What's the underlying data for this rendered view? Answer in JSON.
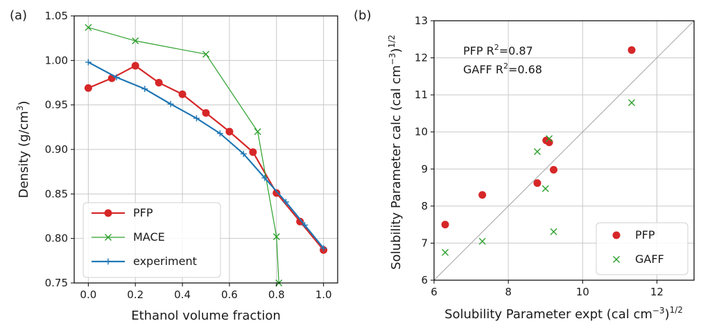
{
  "colors": {
    "PFP": "#d62728",
    "MACE": "#2ca02c",
    "experiment": "#1f77b4",
    "GAFF": "#2ca02c",
    "diag": "#b0b0b0"
  },
  "chart_data": [
    {
      "panel_label": "(a)",
      "type": "line",
      "xlabel": "Ethanol volume fraction",
      "ylabel_main": "Density (g/cm",
      "ylabel_sup": "3",
      "ylabel_end": ")",
      "xlim": [
        -0.06,
        1.06
      ],
      "ylim": [
        0.75,
        1.05
      ],
      "xticks": [
        0.0,
        0.2,
        0.4,
        0.6,
        0.8,
        1.0
      ],
      "xtick_labels": [
        "0.0",
        "0.2",
        "0.4",
        "0.6",
        "0.8",
        "1.0"
      ],
      "yticks": [
        0.75,
        0.8,
        0.85,
        0.9,
        0.95,
        1.0,
        1.05
      ],
      "ytick_labels": [
        "0.75",
        "0.80",
        "0.85",
        "0.90",
        "0.95",
        "1.00",
        "1.05"
      ],
      "grid": true,
      "legend_position": "lower-left",
      "series": [
        {
          "name": "PFP",
          "marker": "circle",
          "x": [
            0.0,
            0.1,
            0.2,
            0.3,
            0.4,
            0.5,
            0.6,
            0.7,
            0.8,
            0.9,
            1.0
          ],
          "y": [
            0.969,
            0.98,
            0.994,
            0.975,
            0.962,
            0.941,
            0.92,
            0.897,
            0.851,
            0.819,
            0.787
          ]
        },
        {
          "name": "MACE",
          "marker": "x",
          "x": [
            0.0,
            0.2,
            0.5,
            0.72,
            0.8,
            0.81
          ],
          "y": [
            1.037,
            1.022,
            1.007,
            0.92,
            0.802,
            0.75
          ]
        },
        {
          "name": "experiment",
          "marker": "plus",
          "x": [
            0.0,
            0.12,
            0.24,
            0.35,
            0.46,
            0.56,
            0.66,
            0.75,
            0.84,
            0.92,
            1.0
          ],
          "y": [
            0.998,
            0.981,
            0.968,
            0.951,
            0.935,
            0.918,
            0.895,
            0.868,
            0.841,
            0.815,
            0.789
          ]
        }
      ]
    },
    {
      "panel_label": "(b)",
      "type": "scatter",
      "xlabel_main": "Solubility Parameter expt (cal cm",
      "xlabel_sup": "−3",
      "xlabel_end": ")",
      "xlabel_sup2": "1/2",
      "ylabel_main": "Solubility Parameter calc (cal cm",
      "ylabel_sup": "−3",
      "ylabel_end": ")",
      "ylabel_sup2": "1/2",
      "xlim": [
        6,
        13
      ],
      "ylim": [
        6,
        13
      ],
      "xticks": [
        6,
        8,
        10,
        12
      ],
      "xtick_labels": [
        "6",
        "8",
        "10",
        "12"
      ],
      "yticks": [
        6,
        7,
        8,
        9,
        10,
        11,
        12,
        13
      ],
      "ytick_labels": [
        "6",
        "7",
        "8",
        "9",
        "10",
        "11",
        "12",
        "13"
      ],
      "grid": true,
      "diagonal": true,
      "legend_position": "lower-right",
      "annotations": [
        {
          "label": "PFP   R",
          "sup": "2",
          "value": "=0.87"
        },
        {
          "label": "GAFF R",
          "sup": "2",
          "value": "=0.68"
        }
      ],
      "series": [
        {
          "name": "PFP",
          "marker": "circle",
          "x": [
            6.3,
            7.3,
            8.78,
            9.02,
            9.1,
            9.22,
            11.32
          ],
          "y": [
            7.5,
            8.3,
            8.62,
            9.77,
            9.72,
            8.98,
            12.21
          ]
        },
        {
          "name": "GAFF",
          "marker": "x",
          "x": [
            6.3,
            7.3,
            8.78,
            9.0,
            9.1,
            9.22,
            11.32
          ],
          "y": [
            6.75,
            7.05,
            9.47,
            8.47,
            9.82,
            7.31,
            10.79
          ]
        }
      ]
    }
  ]
}
